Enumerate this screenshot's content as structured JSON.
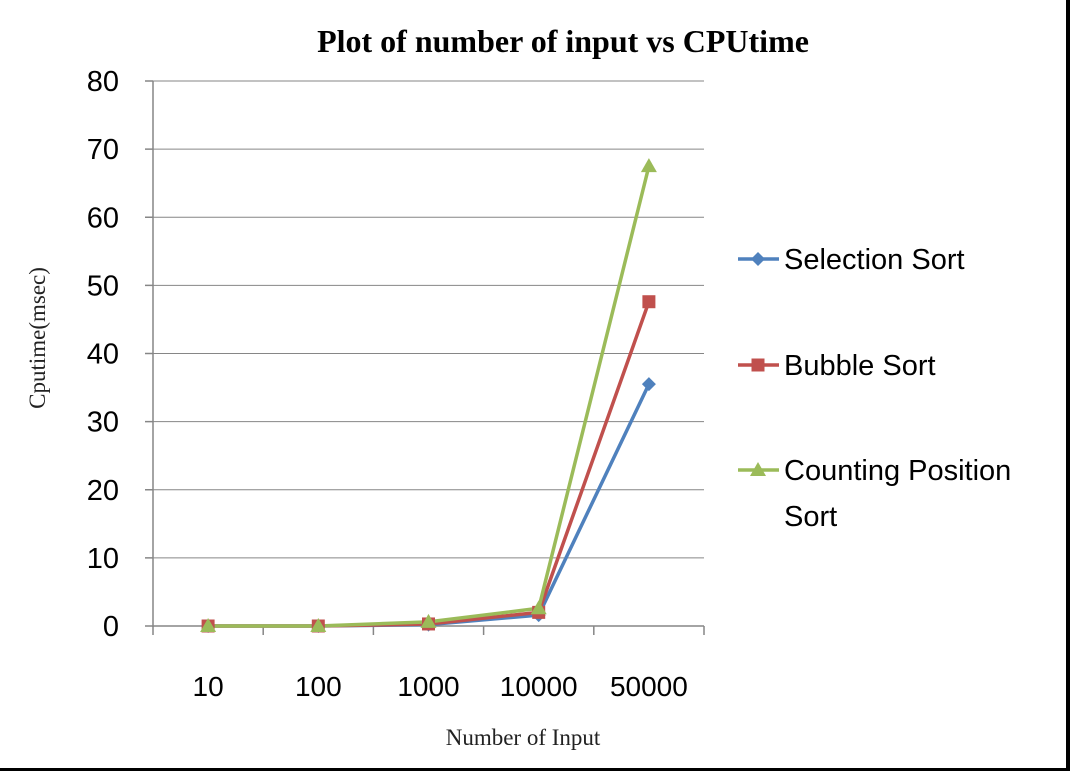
{
  "chart_data": {
    "type": "line",
    "title": "Plot of number of input vs  CPUtime",
    "xlabel": "Number of Input",
    "ylabel": "Cputime(msec)",
    "categories": [
      "10",
      "100",
      "1000",
      "10000",
      "50000"
    ],
    "ylim": [
      0,
      80
    ],
    "yticks": [
      "0",
      "10",
      "20",
      "30",
      "40",
      "50",
      "60",
      "70",
      "80"
    ],
    "grid": true,
    "legend_position": "right",
    "series": [
      {
        "name": "Selection Sort",
        "color": "#4F81BD",
        "marker": "diamond",
        "values": [
          0,
          0,
          0.2,
          1.6,
          35.5
        ]
      },
      {
        "name": "Bubble Sort",
        "color": "#C0504D",
        "marker": "square",
        "values": [
          0,
          0,
          0.3,
          2.0,
          47.6
        ]
      },
      {
        "name": "Counting Position Sort",
        "name_lines": [
          "Counting Position",
          "Sort"
        ],
        "color": "#9BBB59",
        "marker": "triangle",
        "values": [
          0,
          0,
          0.6,
          2.6,
          67.5
        ]
      }
    ]
  }
}
